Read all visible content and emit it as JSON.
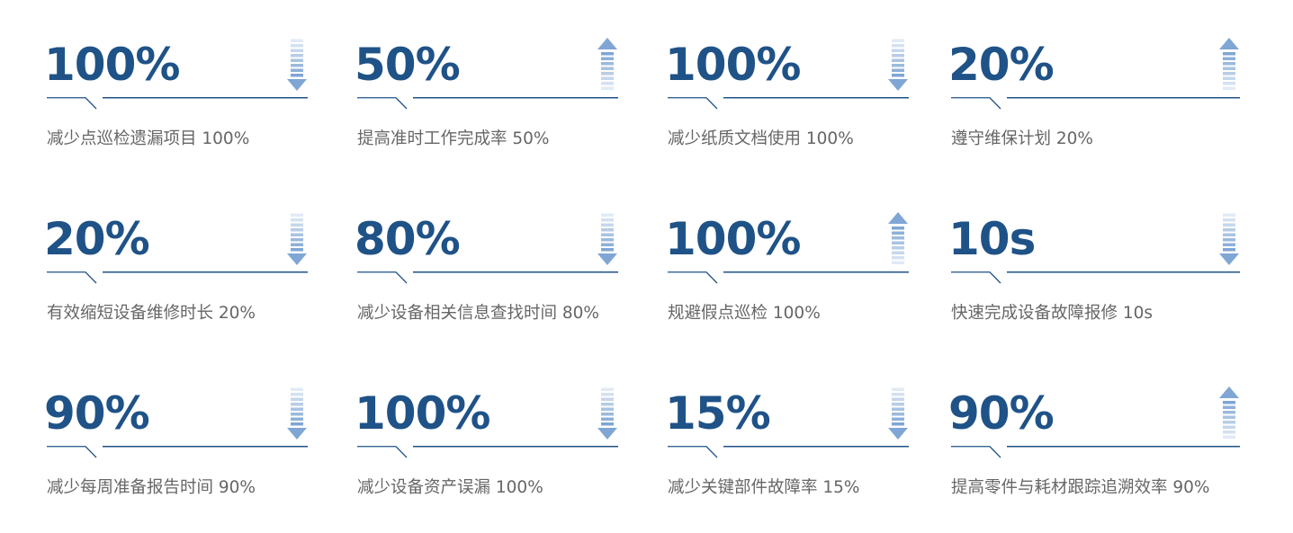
{
  "accent_color": "#1f5287",
  "arrow_color": "#7fa6d4",
  "metrics": [
    {
      "value": "100%",
      "label": "减少点巡检遗漏项目 100%",
      "direction": "down"
    },
    {
      "value": "50%",
      "label": "提高准时工作完成率 50%",
      "direction": "up"
    },
    {
      "value": "100%",
      "label": "减少纸质文档使用 100%",
      "direction": "down"
    },
    {
      "value": "20%",
      "label": "遵守维保计划 20%",
      "direction": "up"
    },
    {
      "value": "20%",
      "label": "有效缩短设备维修时长 20%",
      "direction": "down"
    },
    {
      "value": "80%",
      "label": "减少设备相关信息查找时间 80%",
      "direction": "down"
    },
    {
      "value": "100%",
      "label": "规避假点巡检 100%",
      "direction": "up"
    },
    {
      "value": "10s",
      "label": "快速完成设备故障报修 10s",
      "direction": "down"
    },
    {
      "value": "90%",
      "label": "减少每周准备报告时间 90%",
      "direction": "down"
    },
    {
      "value": "100%",
      "label": "减少设备资产误漏 100%",
      "direction": "down"
    },
    {
      "value": "15%",
      "label": "减少关键部件故障率 15%",
      "direction": "down"
    },
    {
      "value": "90%",
      "label": "提高零件与耗材跟踪追溯效率 90%",
      "direction": "up"
    }
  ]
}
